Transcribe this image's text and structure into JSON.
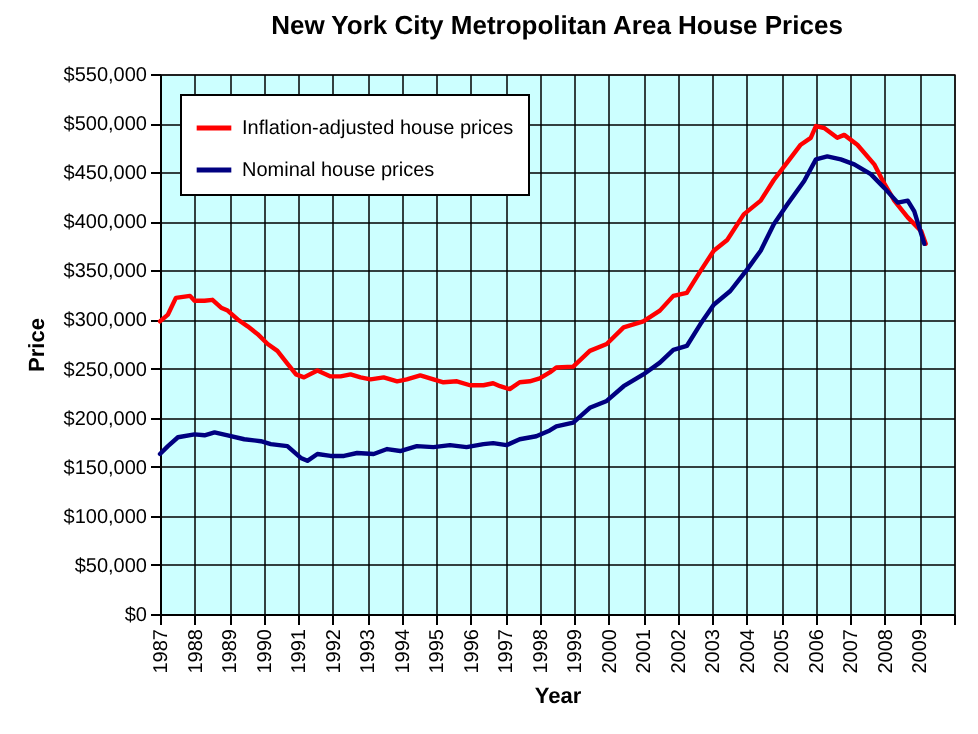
{
  "chart_data": {
    "type": "line",
    "title": "New York City Metropolitan Area House Prices",
    "xlabel": "Year",
    "ylabel": "Price",
    "xlim": [
      1987,
      2010
    ],
    "xticks": [
      1987,
      1988,
      1989,
      1990,
      1991,
      1992,
      1993,
      1994,
      1995,
      1996,
      1997,
      1998,
      1999,
      2000,
      2001,
      2002,
      2003,
      2004,
      2005,
      2006,
      2007,
      2008,
      2009,
      {
        "value": 2010,
        "label": null
      }
    ],
    "ylim": [
      0,
      550000
    ],
    "yticks": [
      {
        "value": 0,
        "label": "$0"
      },
      {
        "value": 50000,
        "label": "$50,000"
      },
      {
        "value": 100000,
        "label": "$100,000"
      },
      {
        "value": 150000,
        "label": "$150,000"
      },
      {
        "value": 200000,
        "label": "$200,000"
      },
      {
        "value": 250000,
        "label": "$250,000"
      },
      {
        "value": 300000,
        "label": "$300,000"
      },
      {
        "value": 350000,
        "label": "$350,000"
      },
      {
        "value": 400000,
        "label": "$400,000"
      },
      {
        "value": 450000,
        "label": "$450,000"
      },
      {
        "value": 500000,
        "label": "$500,000"
      },
      {
        "value": 550000,
        "label": "$550,000"
      }
    ],
    "grid": true,
    "legend": "top left",
    "line_style": "solid",
    "marker": "none",
    "series": [
      {
        "name": "Inflation-adjusted house prices",
        "color": "#ff0000",
        "x": [
          1987.0,
          1987.23,
          1987.46,
          1987.87,
          1988.0,
          1988.29,
          1988.52,
          1988.77,
          1988.96,
          1989.25,
          1989.54,
          1989.83,
          1990.12,
          1990.4,
          1990.69,
          1990.94,
          1991.17,
          1991.56,
          1991.94,
          1992.23,
          1992.52,
          1992.81,
          1993.1,
          1993.48,
          1993.87,
          1994.15,
          1994.54,
          1994.92,
          1995.21,
          1995.6,
          1995.98,
          1996.37,
          1996.65,
          1996.85,
          1997.13,
          1997.42,
          1997.71,
          1998.0,
          1998.29,
          1998.48,
          1998.97,
          1999.45,
          1999.94,
          2000.43,
          2001.0,
          2001.48,
          2001.87,
          2002.26,
          2002.65,
          2003.04,
          2003.43,
          2003.91,
          2004.4,
          2004.78,
          2005.17,
          2005.56,
          2005.85,
          2006.0,
          2006.24,
          2006.62,
          2006.82,
          2007.2,
          2007.69,
          2007.94,
          2008.27,
          2008.66,
          2009.05,
          2009.18
        ],
        "values": [
          298000,
          305000,
          322000,
          324000,
          319000,
          319000,
          320000,
          312000,
          309000,
          300000,
          293000,
          285000,
          275000,
          268000,
          255000,
          244000,
          241000,
          248000,
          242000,
          242000,
          244000,
          241000,
          239000,
          241000,
          237000,
          239000,
          243000,
          239000,
          236000,
          237000,
          233000,
          233000,
          235000,
          232000,
          229000,
          236000,
          237000,
          240000,
          246000,
          251000,
          252000,
          268000,
          275000,
          292000,
          298000,
          309000,
          324000,
          327000,
          349000,
          370000,
          381000,
          407000,
          421000,
          442000,
          460000,
          478000,
          485000,
          497000,
          495000,
          485000,
          488000,
          478000,
          458000,
          441000,
          421000,
          404000,
          390000,
          377000
        ]
      },
      {
        "name": "Nominal house prices",
        "color": "#000080",
        "x": [
          1987.0,
          1987.23,
          1987.52,
          1988.0,
          1988.29,
          1988.58,
          1988.96,
          1989.44,
          1989.92,
          1990.21,
          1990.69,
          1991.08,
          1991.27,
          1991.56,
          1991.94,
          1992.33,
          1992.71,
          1993.19,
          1993.58,
          1993.96,
          1994.44,
          1994.92,
          1995.4,
          1995.88,
          1996.37,
          1996.65,
          1997.04,
          1997.42,
          1997.9,
          1998.29,
          1998.48,
          1998.97,
          1999.45,
          1999.94,
          2000.43,
          2001.0,
          2001.48,
          2001.87,
          2002.26,
          2002.65,
          2003.04,
          2003.52,
          2004.01,
          2004.4,
          2004.78,
          2005.17,
          2005.66,
          2006.0,
          2006.33,
          2006.72,
          2007.11,
          2007.59,
          2007.98,
          2008.37,
          2008.66,
          2008.85,
          2009.14
        ],
        "values": [
          163000,
          171000,
          180000,
          183000,
          182000,
          185000,
          182000,
          178000,
          176000,
          173000,
          171000,
          159000,
          156000,
          163000,
          161000,
          161000,
          164000,
          163000,
          168000,
          166000,
          171000,
          170000,
          172000,
          170000,
          173000,
          174000,
          172000,
          178000,
          181000,
          187000,
          191000,
          195000,
          210000,
          217000,
          232000,
          244000,
          256000,
          269000,
          273000,
          295000,
          315000,
          329000,
          351000,
          370000,
          397000,
          417000,
          441000,
          463000,
          466000,
          463000,
          458000,
          448000,
          434000,
          419000,
          421000,
          410000,
          377000
        ]
      }
    ]
  }
}
